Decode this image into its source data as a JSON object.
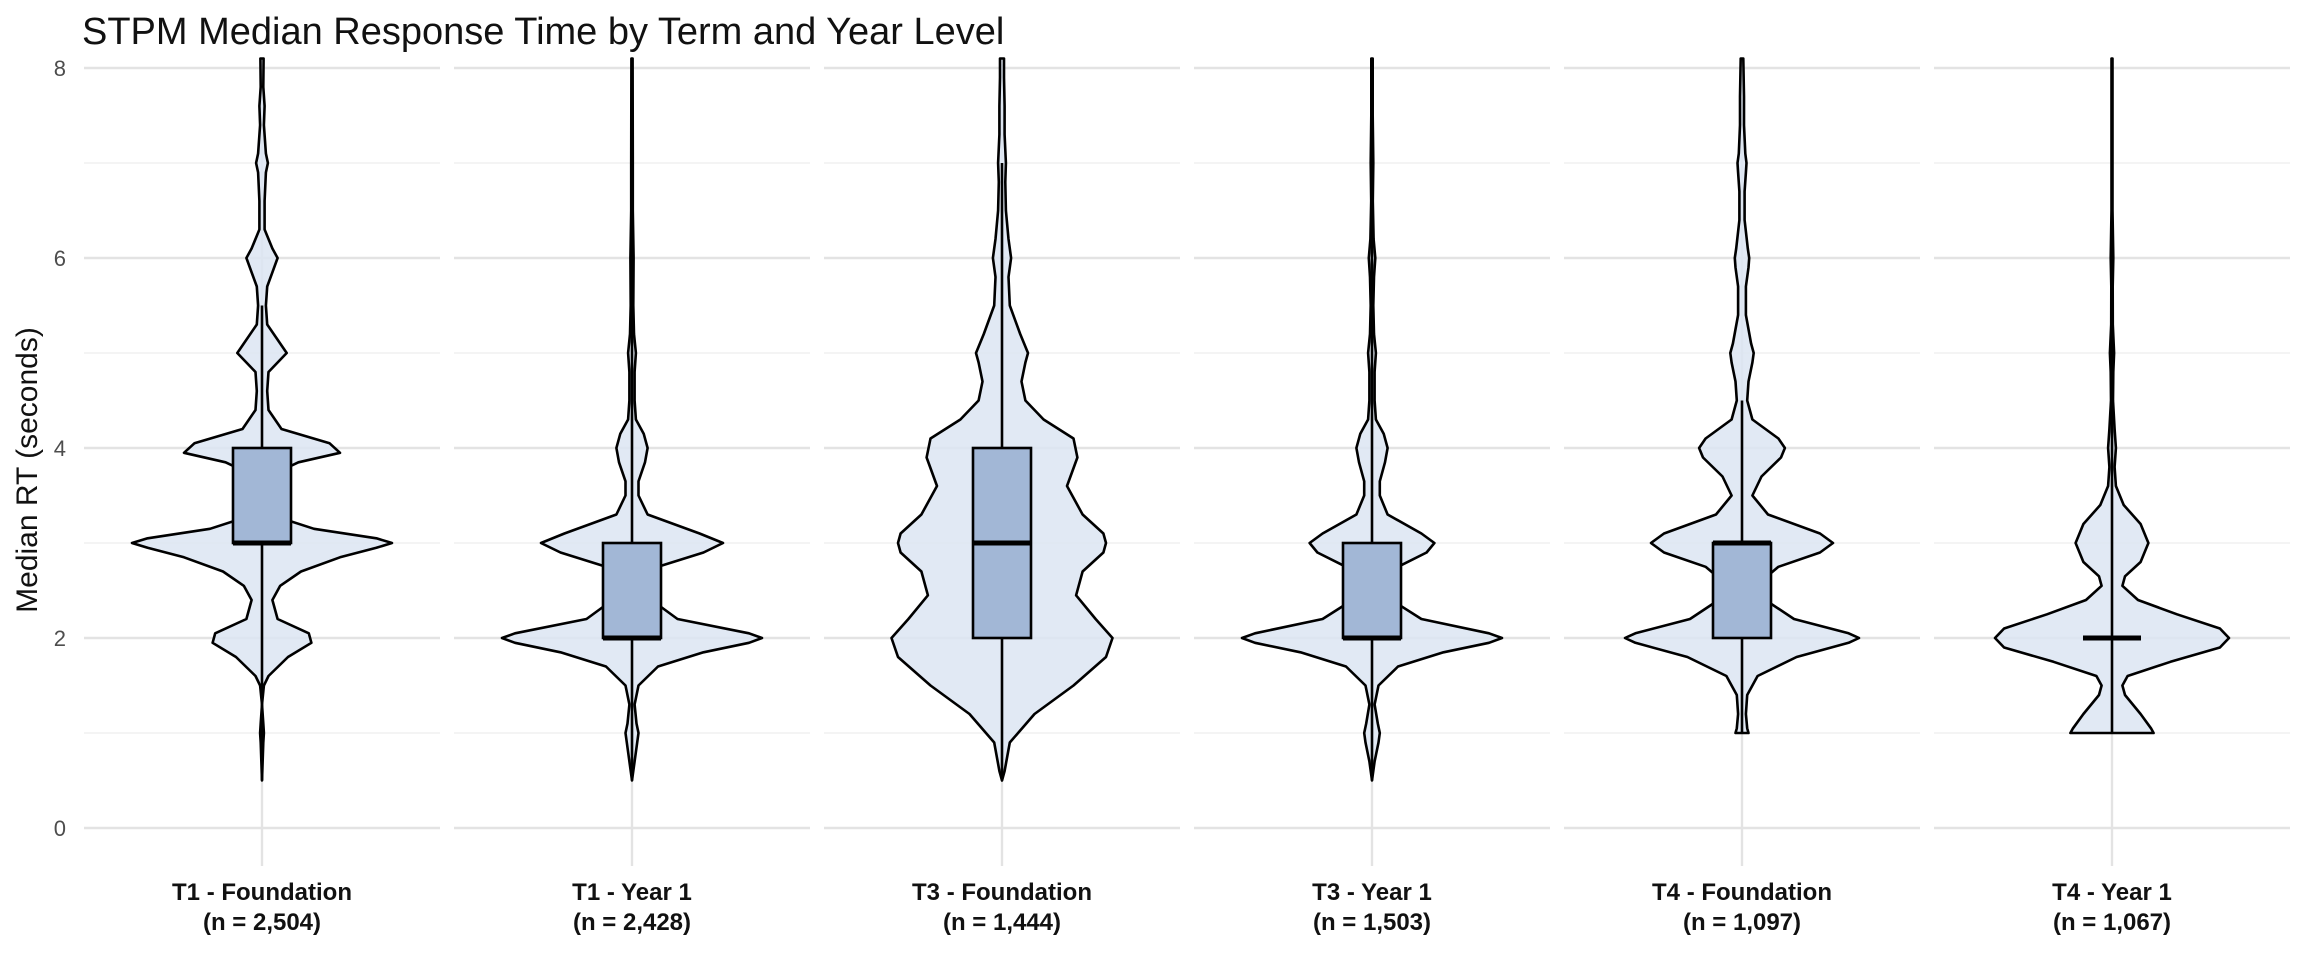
{
  "chart_data": {
    "type": "violin",
    "title": "STPM Median Response Time by Term and Year Level",
    "xlabel": "",
    "ylabel": "Median RT (seconds)",
    "ylim": [
      0,
      8
    ],
    "yticks": [
      "0",
      "2",
      "4",
      "6",
      "8"
    ],
    "grid": true,
    "colors": {
      "violin_fill": "#dce5f2",
      "box_fill": "#a2b7d6",
      "outline": "#000000",
      "grid_major": "#e3e3e3",
      "grid_minor": "#f0f0f0"
    },
    "groups": [
      {
        "name": "T1 - Foundation",
        "n_label": "(n = 2,504)",
        "min": 0.5,
        "q1": 3.0,
        "median": 3.0,
        "q3": 4.0,
        "max": 5.5,
        "whisker_low": 1.5,
        "density": [
          [
            0.5,
            0.0
          ],
          [
            0.9,
            0.01
          ],
          [
            1.0,
            0.015
          ],
          [
            1.1,
            0.01
          ],
          [
            1.3,
            0.0
          ],
          [
            1.5,
            0.015
          ],
          [
            1.6,
            0.05
          ],
          [
            1.8,
            0.2
          ],
          [
            1.95,
            0.38
          ],
          [
            2.05,
            0.36
          ],
          [
            2.2,
            0.12
          ],
          [
            2.4,
            0.08
          ],
          [
            2.55,
            0.14
          ],
          [
            2.7,
            0.3
          ],
          [
            2.85,
            0.6
          ],
          [
            2.95,
            0.88
          ],
          [
            3.0,
            1.0
          ],
          [
            3.05,
            0.88
          ],
          [
            3.15,
            0.4
          ],
          [
            3.3,
            0.06
          ],
          [
            3.5,
            0.04
          ],
          [
            3.7,
            0.05
          ],
          [
            3.85,
            0.28
          ],
          [
            3.95,
            0.6
          ],
          [
            4.05,
            0.52
          ],
          [
            4.2,
            0.15
          ],
          [
            4.4,
            0.05
          ],
          [
            4.6,
            0.04
          ],
          [
            4.8,
            0.05
          ],
          [
            4.9,
            0.12
          ],
          [
            5.0,
            0.19
          ],
          [
            5.1,
            0.14
          ],
          [
            5.3,
            0.04
          ],
          [
            5.5,
            0.03
          ],
          [
            5.7,
            0.04
          ],
          [
            5.85,
            0.08
          ],
          [
            6.0,
            0.12
          ],
          [
            6.1,
            0.08
          ],
          [
            6.3,
            0.02
          ],
          [
            6.6,
            0.02
          ],
          [
            6.9,
            0.03
          ],
          [
            7.0,
            0.045
          ],
          [
            7.1,
            0.03
          ],
          [
            7.4,
            0.015
          ],
          [
            7.6,
            0.02
          ],
          [
            7.8,
            0.01
          ],
          [
            8.1,
            0.012
          ]
        ]
      },
      {
        "name": "T1 - Year 1",
        "n_label": "(n = 2,428)",
        "min": 0.5,
        "q1": 2.0,
        "median": 2.0,
        "q3": 3.0,
        "max": 8.1,
        "whisker_low": 1.5,
        "density": [
          [
            0.5,
            0.0
          ],
          [
            0.7,
            0.02
          ],
          [
            0.9,
            0.04
          ],
          [
            1.0,
            0.05
          ],
          [
            1.1,
            0.035
          ],
          [
            1.3,
            0.02
          ],
          [
            1.5,
            0.05
          ],
          [
            1.7,
            0.2
          ],
          [
            1.85,
            0.55
          ],
          [
            1.95,
            0.9
          ],
          [
            2.0,
            1.0
          ],
          [
            2.05,
            0.9
          ],
          [
            2.2,
            0.35
          ],
          [
            2.4,
            0.15
          ],
          [
            2.6,
            0.1
          ],
          [
            2.75,
            0.2
          ],
          [
            2.9,
            0.55
          ],
          [
            3.0,
            0.7
          ],
          [
            3.1,
            0.52
          ],
          [
            3.3,
            0.12
          ],
          [
            3.5,
            0.05
          ],
          [
            3.65,
            0.05
          ],
          [
            3.85,
            0.1
          ],
          [
            4.0,
            0.12
          ],
          [
            4.15,
            0.09
          ],
          [
            4.3,
            0.03
          ],
          [
            4.5,
            0.02
          ],
          [
            4.8,
            0.02
          ],
          [
            5.0,
            0.03
          ],
          [
            5.2,
            0.015
          ],
          [
            5.5,
            0.01
          ],
          [
            6.0,
            0.012
          ],
          [
            6.5,
            0.006
          ],
          [
            7.0,
            0.006
          ],
          [
            8.1,
            0.005
          ]
        ]
      },
      {
        "name": "T3 - Foundation",
        "n_label": "(n = 1,444)",
        "min": 0.5,
        "q1": 2.0,
        "median": 3.0,
        "q3": 4.0,
        "max": 7.0,
        "whisker_low": 0.5,
        "density": [
          [
            0.5,
            0.0
          ],
          [
            0.6,
            0.02
          ],
          [
            0.9,
            0.06
          ],
          [
            1.2,
            0.25
          ],
          [
            1.5,
            0.55
          ],
          [
            1.8,
            0.8
          ],
          [
            2.0,
            0.85
          ],
          [
            2.2,
            0.72
          ],
          [
            2.45,
            0.57
          ],
          [
            2.7,
            0.62
          ],
          [
            2.9,
            0.78
          ],
          [
            3.0,
            0.8
          ],
          [
            3.1,
            0.78
          ],
          [
            3.3,
            0.62
          ],
          [
            3.6,
            0.5
          ],
          [
            3.9,
            0.58
          ],
          [
            4.1,
            0.55
          ],
          [
            4.3,
            0.32
          ],
          [
            4.5,
            0.18
          ],
          [
            4.7,
            0.15
          ],
          [
            4.9,
            0.18
          ],
          [
            5.0,
            0.2
          ],
          [
            5.2,
            0.14
          ],
          [
            5.5,
            0.06
          ],
          [
            5.8,
            0.05
          ],
          [
            6.0,
            0.07
          ],
          [
            6.2,
            0.05
          ],
          [
            6.5,
            0.03
          ],
          [
            6.8,
            0.025
          ],
          [
            7.0,
            0.03
          ],
          [
            7.3,
            0.02
          ],
          [
            7.6,
            0.02
          ],
          [
            7.9,
            0.015
          ],
          [
            8.1,
            0.015
          ]
        ]
      },
      {
        "name": "T3 - Year 1",
        "n_label": "(n = 1,503)",
        "min": 0.5,
        "q1": 2.0,
        "median": 2.0,
        "q3": 3.0,
        "max": 8.1,
        "whisker_low": 1.5,
        "density": [
          [
            0.5,
            0.0
          ],
          [
            0.7,
            0.02
          ],
          [
            0.9,
            0.05
          ],
          [
            1.0,
            0.06
          ],
          [
            1.1,
            0.045
          ],
          [
            1.3,
            0.02
          ],
          [
            1.5,
            0.05
          ],
          [
            1.7,
            0.2
          ],
          [
            1.85,
            0.55
          ],
          [
            1.95,
            0.9
          ],
          [
            2.0,
            1.0
          ],
          [
            2.05,
            0.9
          ],
          [
            2.2,
            0.38
          ],
          [
            2.4,
            0.15
          ],
          [
            2.6,
            0.12
          ],
          [
            2.75,
            0.2
          ],
          [
            2.9,
            0.42
          ],
          [
            3.0,
            0.48
          ],
          [
            3.1,
            0.38
          ],
          [
            3.3,
            0.12
          ],
          [
            3.5,
            0.06
          ],
          [
            3.65,
            0.06
          ],
          [
            3.85,
            0.1
          ],
          [
            4.0,
            0.12
          ],
          [
            4.15,
            0.09
          ],
          [
            4.3,
            0.03
          ],
          [
            4.5,
            0.02
          ],
          [
            4.8,
            0.02
          ],
          [
            5.0,
            0.03
          ],
          [
            5.2,
            0.015
          ],
          [
            5.5,
            0.01
          ],
          [
            5.8,
            0.015
          ],
          [
            6.0,
            0.025
          ],
          [
            6.2,
            0.012
          ],
          [
            6.6,
            0.006
          ],
          [
            7.0,
            0.01
          ],
          [
            7.5,
            0.005
          ],
          [
            8.1,
            0.005
          ]
        ]
      },
      {
        "name": "T4 - Foundation",
        "n_label": "(n = 1,097)",
        "min": 1.0,
        "q1": 2.0,
        "median": 3.0,
        "q3": 3.0,
        "max": 4.5,
        "whisker_low": 1.5,
        "density": [
          [
            1.0,
            0.05
          ],
          [
            1.05,
            0.04
          ],
          [
            1.2,
            0.03
          ],
          [
            1.4,
            0.04
          ],
          [
            1.6,
            0.12
          ],
          [
            1.8,
            0.42
          ],
          [
            1.95,
            0.82
          ],
          [
            2.0,
            0.9
          ],
          [
            2.05,
            0.82
          ],
          [
            2.2,
            0.4
          ],
          [
            2.4,
            0.18
          ],
          [
            2.6,
            0.15
          ],
          [
            2.75,
            0.28
          ],
          [
            2.9,
            0.6
          ],
          [
            3.0,
            0.7
          ],
          [
            3.1,
            0.6
          ],
          [
            3.3,
            0.2
          ],
          [
            3.5,
            0.08
          ],
          [
            3.7,
            0.15
          ],
          [
            3.9,
            0.3
          ],
          [
            4.0,
            0.33
          ],
          [
            4.1,
            0.28
          ],
          [
            4.3,
            0.08
          ],
          [
            4.5,
            0.04
          ],
          [
            4.7,
            0.05
          ],
          [
            4.9,
            0.08
          ],
          [
            5.0,
            0.09
          ],
          [
            5.1,
            0.07
          ],
          [
            5.4,
            0.03
          ],
          [
            5.7,
            0.03
          ],
          [
            5.9,
            0.05
          ],
          [
            6.0,
            0.055
          ],
          [
            6.1,
            0.045
          ],
          [
            6.4,
            0.02
          ],
          [
            6.7,
            0.02
          ],
          [
            6.9,
            0.03
          ],
          [
            7.0,
            0.035
          ],
          [
            7.1,
            0.025
          ],
          [
            7.4,
            0.015
          ],
          [
            7.7,
            0.015
          ],
          [
            8.1,
            0.01
          ]
        ]
      },
      {
        "name": "T4 - Year 1",
        "n_label": "(n = 1,067)",
        "min": 1.0,
        "q1": 2.0,
        "median": 2.0,
        "q3": 2.0,
        "max": 8.1,
        "whisker_low": 2.0,
        "density": [
          [
            1.0,
            0.32
          ],
          [
            1.05,
            0.3
          ],
          [
            1.2,
            0.22
          ],
          [
            1.4,
            0.1
          ],
          [
            1.5,
            0.08
          ],
          [
            1.6,
            0.12
          ],
          [
            1.75,
            0.45
          ],
          [
            1.9,
            0.83
          ],
          [
            2.0,
            0.9
          ],
          [
            2.1,
            0.83
          ],
          [
            2.25,
            0.5
          ],
          [
            2.4,
            0.2
          ],
          [
            2.55,
            0.08
          ],
          [
            2.65,
            0.1
          ],
          [
            2.8,
            0.22
          ],
          [
            3.0,
            0.28
          ],
          [
            3.2,
            0.22
          ],
          [
            3.4,
            0.09
          ],
          [
            3.6,
            0.03
          ],
          [
            3.8,
            0.02
          ],
          [
            4.0,
            0.03
          ],
          [
            4.2,
            0.02
          ],
          [
            4.5,
            0.008
          ],
          [
            4.8,
            0.01
          ],
          [
            5.0,
            0.016
          ],
          [
            5.3,
            0.006
          ],
          [
            5.7,
            0.005
          ],
          [
            6.0,
            0.01
          ],
          [
            6.5,
            0.004
          ],
          [
            7.0,
            0.004
          ],
          [
            8.1,
            0.004
          ]
        ]
      }
    ]
  }
}
